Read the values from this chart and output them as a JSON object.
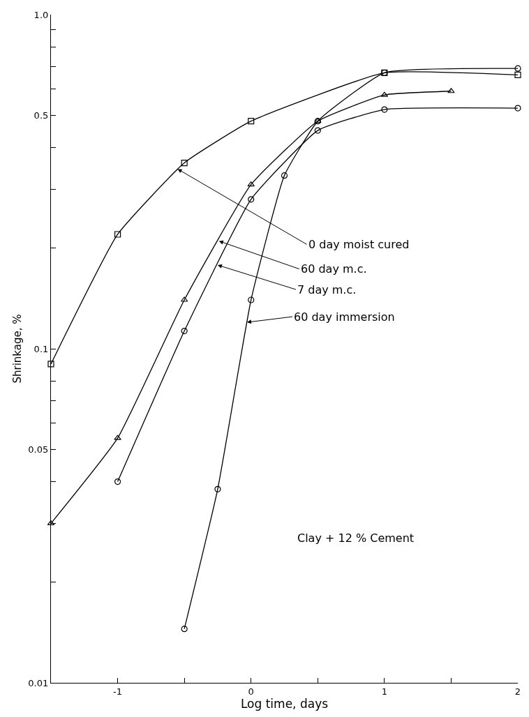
{
  "chart_data": {
    "type": "line",
    "xlabel": "Log time, days",
    "ylabel": "Shrinkage, %",
    "log": "y",
    "line_style": "solid",
    "xlim": [
      -1.5,
      2
    ],
    "xticks": [
      {
        "value": -1,
        "label": "-1"
      },
      {
        "value": -0.5,
        "label": null
      },
      0,
      {
        "value": 0.5,
        "label": null
      },
      1,
      {
        "value": 1.5,
        "label": null
      },
      2
    ],
    "ylim": [
      0.01,
      1.0
    ],
    "yticks": [
      {
        "value": 0.01,
        "label": "0.01"
      },
      {
        "value": 0.02,
        "label": null
      },
      {
        "value": 0.03,
        "label": null
      },
      {
        "value": 0.04,
        "label": null
      },
      {
        "value": 0.05,
        "label": "0.05"
      },
      {
        "value": 0.06,
        "label": null
      },
      {
        "value": 0.07,
        "label": null
      },
      {
        "value": 0.08,
        "label": null
      },
      {
        "value": 0.1,
        "label": "0.1"
      },
      {
        "value": 0.2,
        "label": null
      },
      {
        "value": 0.3,
        "label": null
      },
      {
        "value": 0.4,
        "label": null
      },
      {
        "value": 0.5,
        "label": "0.5"
      },
      {
        "value": 0.6,
        "label": null
      },
      {
        "value": 0.7,
        "label": null
      },
      {
        "value": 0.8,
        "label": null
      },
      {
        "value": 0.9,
        "label": null
      },
      {
        "value": 1.0,
        "label": "1.0"
      }
    ],
    "series": [
      {
        "color": "#000000",
        "marker": "square",
        "x": [
          -1.5,
          -1,
          -0.5,
          0,
          1,
          2
        ],
        "values": [
          0.09,
          0.22,
          0.36,
          0.48,
          0.67,
          0.66
        ]
      },
      {
        "color": "#000000",
        "marker": "triangle",
        "x": [
          -1.5,
          -1,
          -0.5,
          0,
          0.5,
          1,
          1.5
        ],
        "values": [
          0.03,
          0.054,
          0.14,
          0.31,
          0.48,
          0.575,
          0.59
        ]
      },
      {
        "color": "#000000",
        "marker": "circle",
        "x": [
          -1,
          -0.5,
          0,
          0.5,
          1,
          2
        ],
        "values": [
          0.04,
          0.113,
          0.28,
          0.45,
          0.52,
          0.525
        ]
      },
      {
        "color": "#000000",
        "marker": "circle",
        "x": [
          -0.5,
          -0.25,
          0,
          0.25,
          0.5,
          1,
          2
        ],
        "values": [
          0.0145,
          0.038,
          0.14,
          0.33,
          0.48,
          0.67,
          0.69
        ]
      }
    ],
    "annotations": [
      {
        "text": "0 day moist cured",
        "x": -0.55,
        "y": 0.345
      },
      {
        "text": "60 day m.c.",
        "x": -0.24,
        "y": 0.21
      },
      {
        "text": "7 day m.c.",
        "x": -0.25,
        "y": 0.178
      },
      {
        "text": "60 day immersion",
        "x": -0.03,
        "y": 0.12
      },
      "Clay + 12 % Cement"
    ]
  }
}
